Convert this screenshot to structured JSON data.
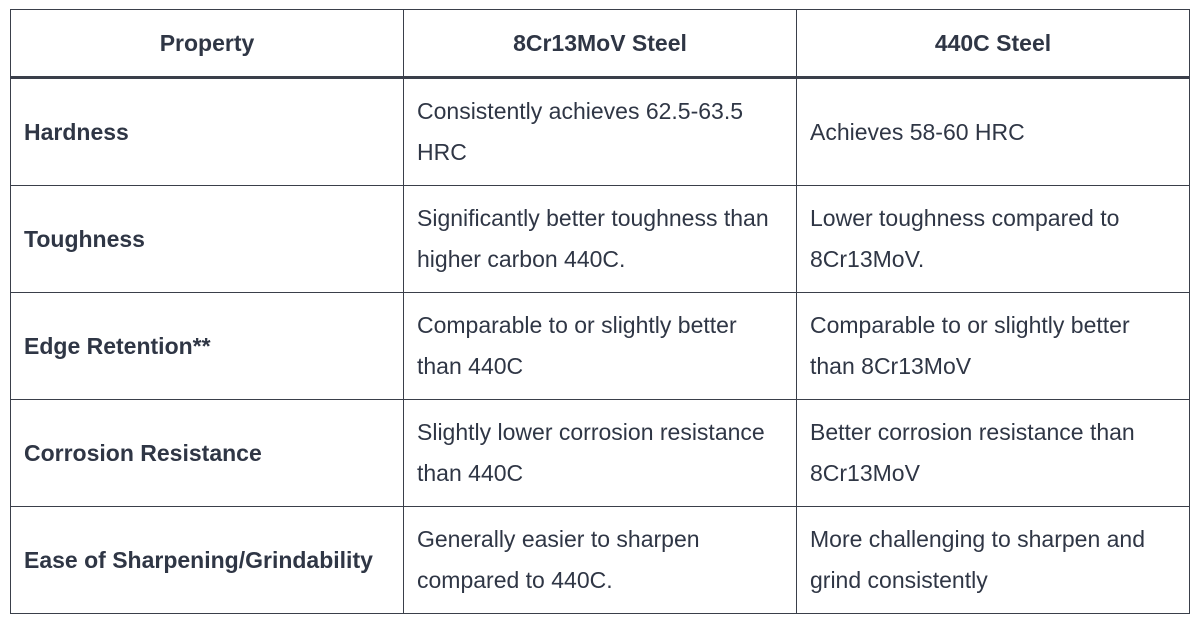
{
  "table": {
    "header": [
      "Property",
      "8Cr13MoV Steel",
      "440C Steel"
    ],
    "rows": [
      [
        "Hardness",
        "Consistently achieves 62.5-63.5 HRC",
        "Achieves 58-60 HRC"
      ],
      [
        "Toughness",
        "Significantly better toughness than higher carbon 440C.",
        "Lower toughness compared to 8Cr13MoV."
      ],
      [
        "Edge Retention**",
        "Comparable to or slightly better than 440C",
        "Comparable to or slightly better than 8Cr13MoV"
      ],
      [
        "Corrosion Resistance",
        "Slightly lower corrosion resistance than 440C",
        "Better corrosion resistance than 8Cr13MoV"
      ],
      [
        "Ease of Sharpening/Grindability",
        "Generally easier to sharpen compared to 440C.",
        "More challenging to sharpen and grind consistently"
      ]
    ]
  }
}
